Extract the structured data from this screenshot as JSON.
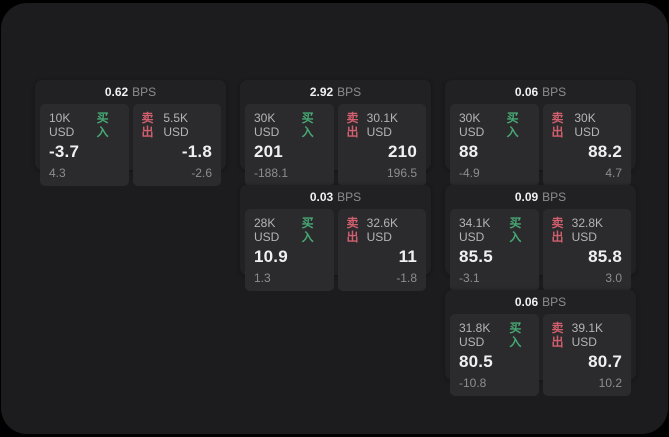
{
  "colors": {
    "surface_bg": "#1c1c1e",
    "card_bg": "#212123",
    "panel_bg": "#2b2b2d",
    "buy_green": "#47a974",
    "sell_red": "#d25f6d",
    "text_primary": "#f0f0f0",
    "text_secondary": "#b4b4b4",
    "text_muted": "#8d8d8d"
  },
  "labels": {
    "bps_unit": "BPS",
    "buy": "买入",
    "sell": "卖出"
  },
  "cards": [
    {
      "row": 1,
      "col": 1,
      "bps": "0.62",
      "buy": {
        "size": "10K USD",
        "price": "-3.7",
        "delta": "4.3"
      },
      "sell": {
        "size": "5.5K USD",
        "price": "-1.8",
        "delta": "-2.6"
      }
    },
    {
      "row": 1,
      "col": 2,
      "bps": "2.92",
      "buy": {
        "size": "30K USD",
        "price": "201",
        "delta": "-188.1"
      },
      "sell": {
        "size": "30.1K USD",
        "price": "210",
        "delta": "196.5"
      }
    },
    {
      "row": 1,
      "col": 3,
      "bps": "0.06",
      "buy": {
        "size": "30K USD",
        "price": "88",
        "delta": "-4.9"
      },
      "sell": {
        "size": "30K USD",
        "price": "88.2",
        "delta": "4.7"
      }
    },
    {
      "row": 2,
      "col": 2,
      "bps": "0.03",
      "buy": {
        "size": "28K USD",
        "price": "10.9",
        "delta": "1.3"
      },
      "sell": {
        "size": "32.6K USD",
        "price": "11",
        "delta": "-1.8"
      }
    },
    {
      "row": 2,
      "col": 3,
      "bps": "0.09",
      "buy": {
        "size": "34.1K USD",
        "price": "85.5",
        "delta": "-3.1"
      },
      "sell": {
        "size": "32.8K USD",
        "price": "85.8",
        "delta": "3.0"
      }
    },
    {
      "row": 3,
      "col": 3,
      "bps": "0.06",
      "buy": {
        "size": "31.8K USD",
        "price": "80.5",
        "delta": "-10.8"
      },
      "sell": {
        "size": "39.1K USD",
        "price": "80.7",
        "delta": "10.2"
      }
    }
  ]
}
